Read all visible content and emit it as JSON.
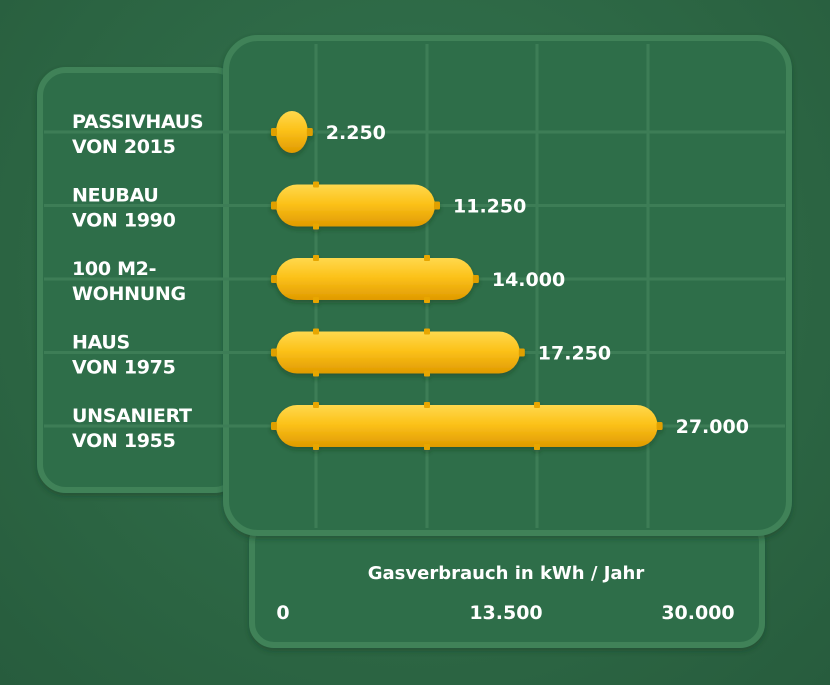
{
  "chart_data": {
    "type": "bar",
    "orientation": "horizontal",
    "categories": [
      [
        "PASSIVHAUS",
        "VON 2015"
      ],
      [
        "NEUBAU",
        "VON 1990"
      ],
      [
        "100 M2-",
        "WOHNUNG"
      ],
      [
        "HAUS",
        "VON 1975"
      ],
      [
        "UNSANIERT",
        "VON 1955"
      ]
    ],
    "values": [
      2250,
      11250,
      14000,
      17250,
      27000
    ],
    "value_labels": [
      "2.250",
      "11.250",
      "14.000",
      "17.250",
      "27.000"
    ],
    "xlabel": "Gasverbrauch in kWh / Jahr",
    "ticks": [
      0,
      13500,
      30000
    ],
    "tick_labels": [
      "0",
      "13.500",
      "30.000"
    ],
    "xlim": [
      0,
      30000
    ],
    "grid": true,
    "colors": {
      "background": "#2e6b47",
      "panel_stroke": "#3f8259",
      "bar": "#f7b500",
      "bar_highlight": "#ffd24a",
      "bar_shadow": "#d98f00",
      "text": "#ffffff"
    }
  }
}
